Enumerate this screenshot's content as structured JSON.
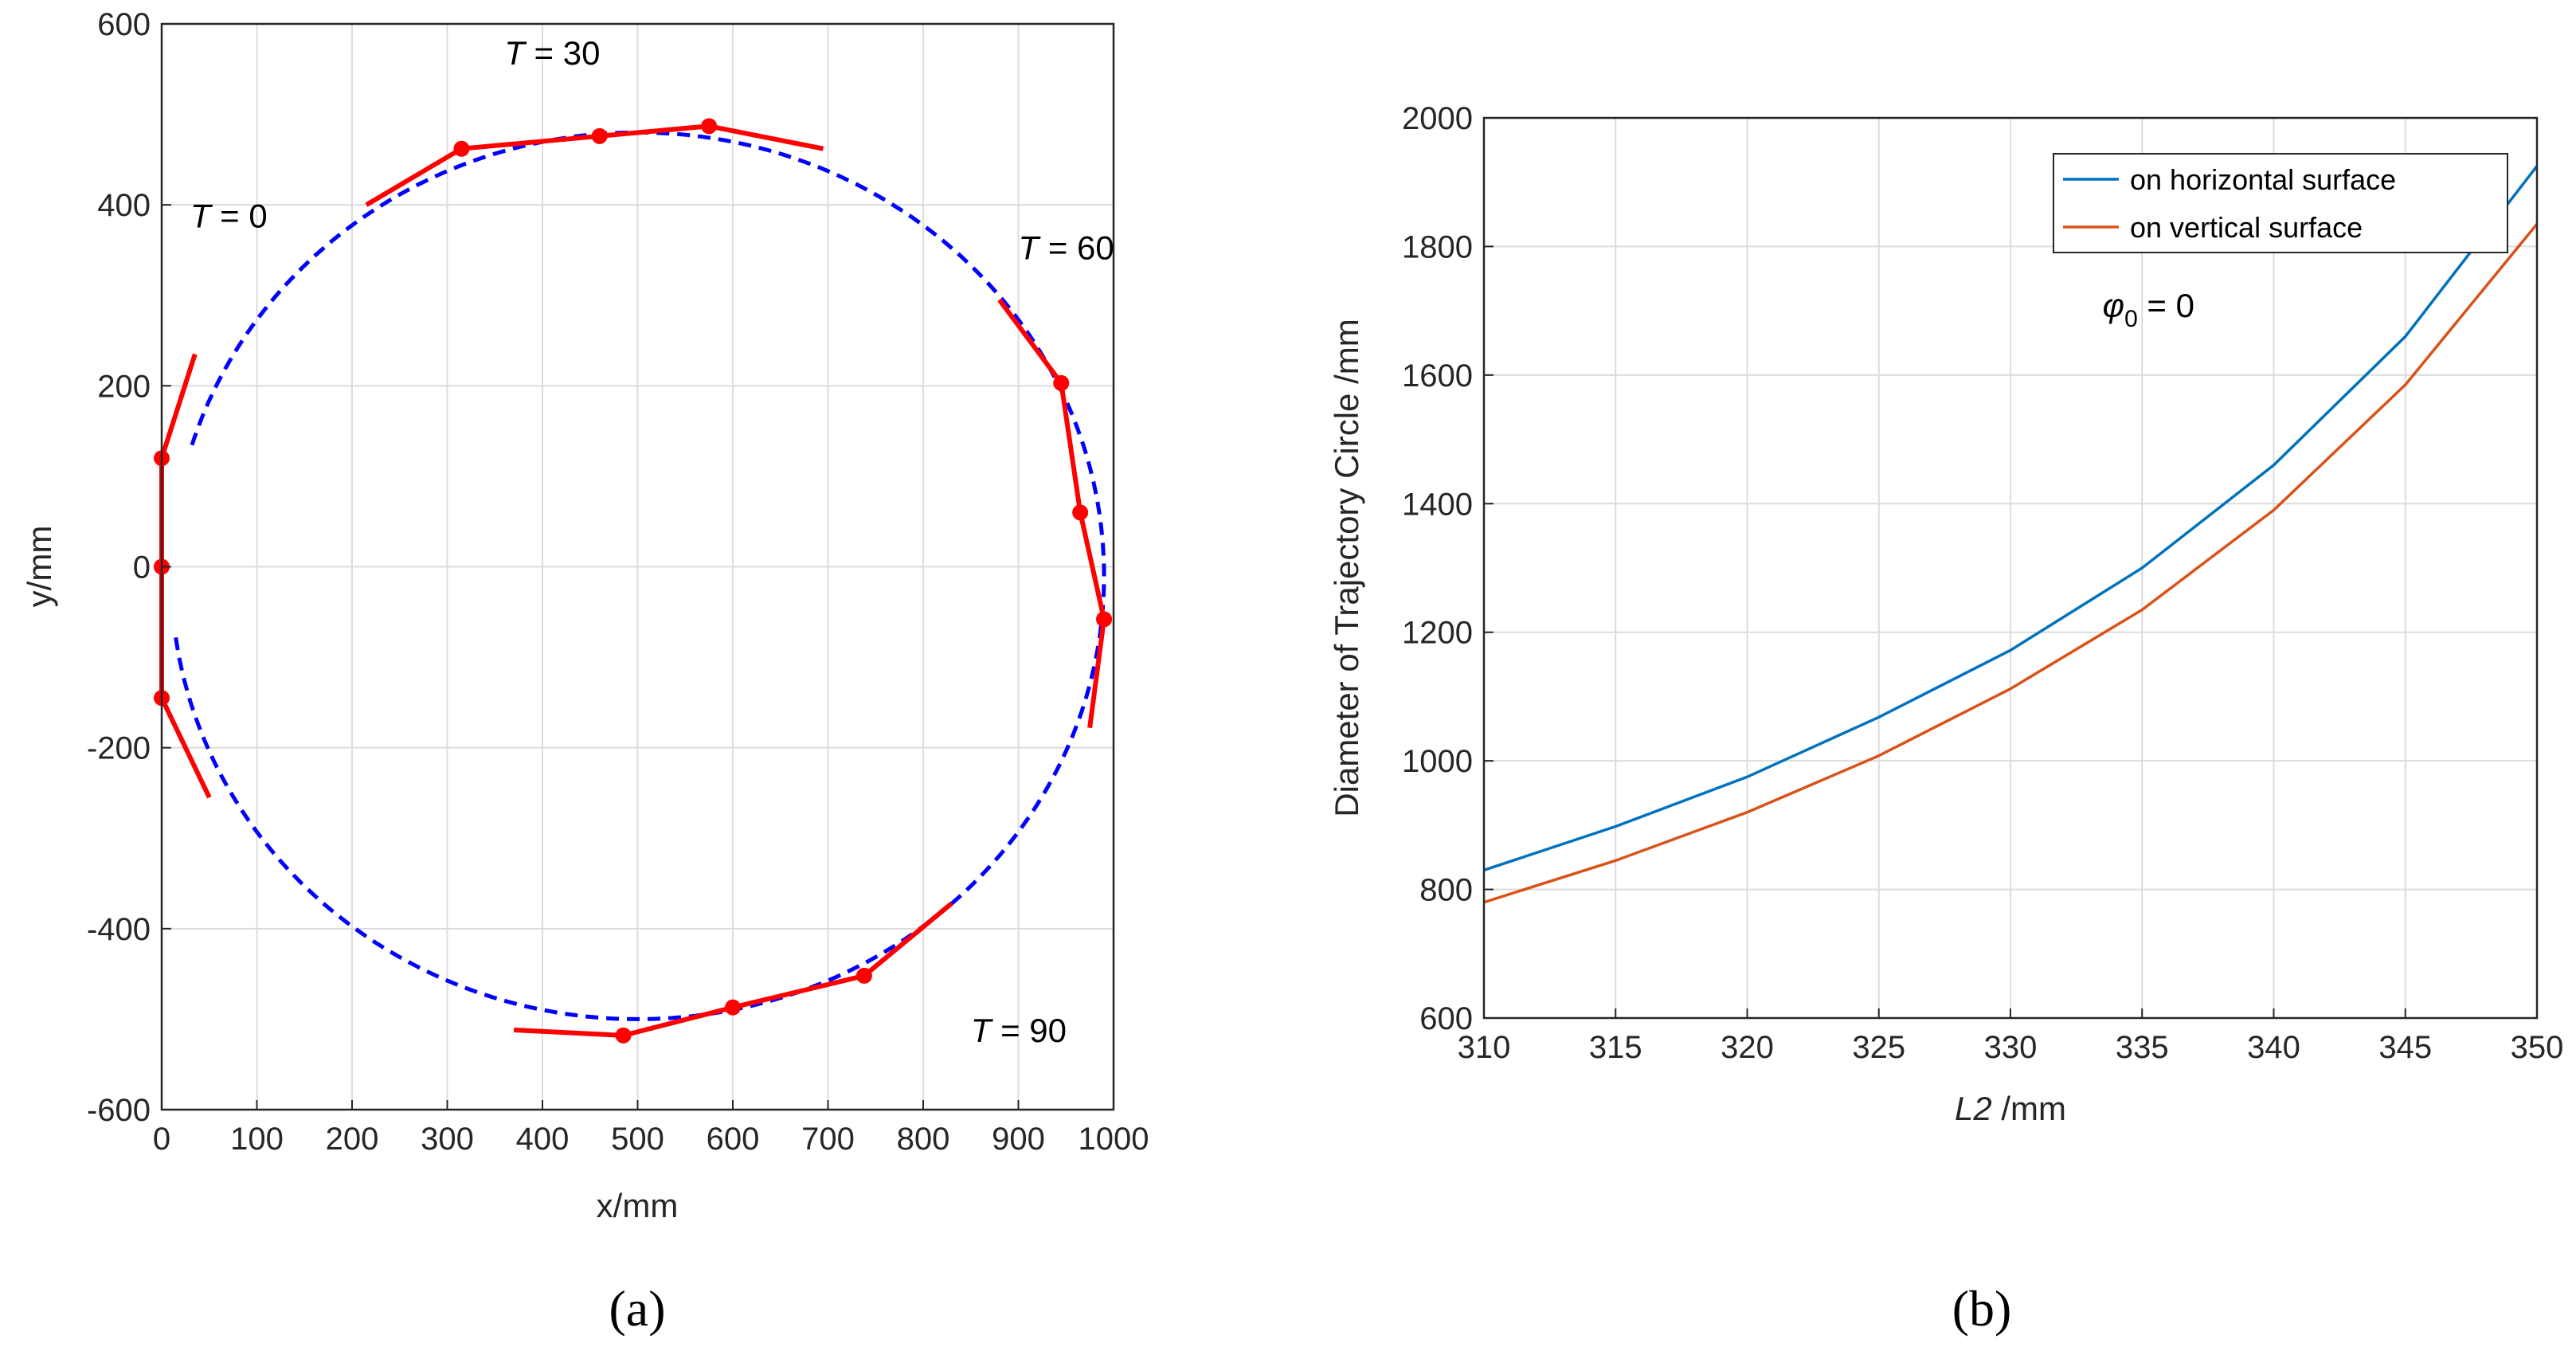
{
  "chart_data": [
    {
      "type": "line",
      "panel_label": "(a)",
      "xlabel": "x/mm",
      "ylabel": "y/mm",
      "xlim": [
        0,
        1000
      ],
      "ylim": [
        -600,
        600
      ],
      "xticks": [
        0,
        100,
        200,
        300,
        400,
        500,
        600,
        700,
        800,
        900,
        1000
      ],
      "yticks": [
        -600,
        -400,
        -200,
        0,
        200,
        400,
        600
      ],
      "grid": true,
      "series": [
        {
          "name": "trajectory circle",
          "style": "dashed",
          "color": "#0000ff",
          "center": [
            500,
            -10
          ],
          "radius": 490
        },
        {
          "name": "links",
          "style": "solid",
          "color": "#ff0000",
          "segments": [
            [
              [
                0,
                120
              ],
              [
                35,
                235
              ]
            ],
            [
              [
                0,
                -145
              ],
              [
                50,
                -255
              ]
            ],
            [
              [
                215,
                400
              ],
              [
                315,
                462
              ],
              [
                460,
                476
              ],
              [
                575,
                487
              ],
              [
                695,
                462
              ]
            ],
            [
              [
                880,
                295
              ],
              [
                945,
                203
              ],
              [
                965,
                60
              ],
              [
                990,
                -58
              ],
              [
                975,
                -178
              ]
            ],
            [
              [
                370,
                -512
              ],
              [
                485,
                -518
              ],
              [
                600,
                -487
              ],
              [
                738,
                -452
              ],
              [
                830,
                -372
              ]
            ]
          ],
          "points": [
            [
              0,
              120
            ],
            [
              0,
              0
            ],
            [
              0,
              -145
            ],
            [
              315,
              462
            ],
            [
              460,
              476
            ],
            [
              575,
              487
            ],
            [
              945,
              203
            ],
            [
              965,
              60
            ],
            [
              990,
              -58
            ],
            [
              485,
              -518
            ],
            [
              600,
              -487
            ],
            [
              738,
              -452
            ]
          ]
        }
      ],
      "annotations": [
        {
          "text_prefix": "T",
          "text_suffix": " = 0",
          "x": 30,
          "y": 375
        },
        {
          "text_prefix": "T",
          "text_suffix": " = 30",
          "x": 360,
          "y": 555
        },
        {
          "text_prefix": "T",
          "text_suffix": " = 60",
          "x": 900,
          "y": 340
        },
        {
          "text_prefix": "T",
          "text_suffix": " = 90",
          "x": 850,
          "y": -525
        }
      ]
    },
    {
      "type": "line",
      "panel_label": "(b)",
      "xlabel_italic": "L2",
      "xlabel_rest": " /mm",
      "ylabel": "Diameter of Trajectory Circle /mm",
      "xlim": [
        310,
        350
      ],
      "ylim": [
        600,
        2000
      ],
      "xticks": [
        310,
        315,
        320,
        325,
        330,
        335,
        340,
        345,
        350
      ],
      "yticks": [
        600,
        800,
        1000,
        1200,
        1400,
        1600,
        1800,
        2000
      ],
      "grid": true,
      "x": [
        310,
        315,
        320,
        325,
        330,
        335,
        340,
        345,
        350
      ],
      "series": [
        {
          "name": "on horizontal surface",
          "color": "#0072bd",
          "values": [
            830,
            898,
            975,
            1068,
            1172,
            1300,
            1460,
            1660,
            1925
          ]
        },
        {
          "name": "on vertical surface",
          "color": "#d95319",
          "values": [
            780,
            845,
            920,
            1008,
            1112,
            1235,
            1390,
            1585,
            1835
          ]
        }
      ],
      "legend_position": "top-right",
      "annotation": {
        "symbol": "φ",
        "subscript": "0",
        "suffix": " = 0",
        "x": 333.5,
        "y": 1690
      }
    }
  ]
}
